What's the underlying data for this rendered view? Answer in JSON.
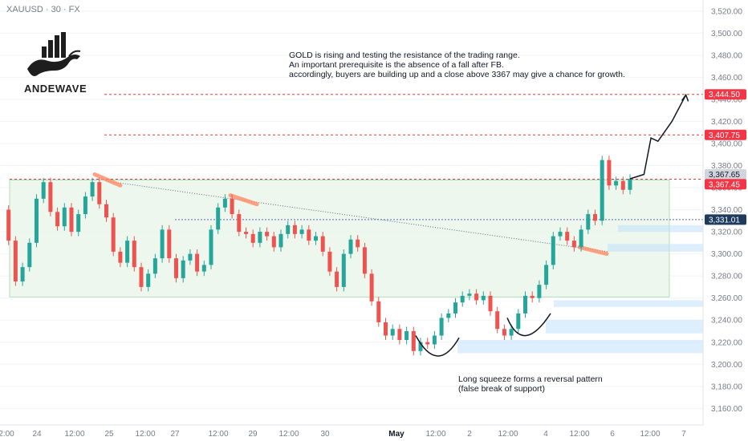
{
  "symbol_label": "XAUUSD · 30 · FX",
  "logo_text": "ANDEWAVE",
  "annotation": {
    "lines": [
      "GOLD is rising and testing the resistance of the trading range.",
      "An important prerequisite is the absence of a fall after FB.",
      "accordingly, buyers are building up and a close above 3367 may give a chance for growth."
    ]
  },
  "pattern_note": {
    "lines": [
      "Long squeeze forms a reversal pattern",
      "(false break of support)"
    ]
  },
  "colors": {
    "up": "#26a69a",
    "down": "#ef5350",
    "range_fill": "#e8f5e9",
    "level_line": "#e53935",
    "price_tag_red": "#f23645",
    "price_tag_gray": "#d1d4dc",
    "price_tag_navy": "#1e3a5f"
  },
  "chart_data": {
    "type": "candlestick",
    "title": "",
    "ylim": [
      3145,
      3530
    ],
    "y_ticks": [
      3160,
      3180,
      3200,
      3220,
      3240,
      3260,
      3280,
      3300,
      3320,
      3340,
      3360,
      3380,
      3400,
      3420,
      3440,
      3460,
      3480,
      3500,
      3520
    ],
    "y_tick_labels": [
      "3,160.00",
      "3,180.00",
      "3,200.00",
      "3,220.00",
      "3,240.00",
      "3,260.00",
      "3,280.00",
      "3,300.00",
      "3,320.00",
      "3,340.00",
      "3,360.00",
      "3,380.00",
      "3,400.00",
      "3,420.00",
      "3,440.00",
      "3,460.00",
      "3,480.00",
      "3,500.00",
      "3,520.00"
    ],
    "x_tick_labels": [
      "2:00",
      "24",
      "12:00",
      "25",
      "12:00",
      "27",
      "12:00",
      "29",
      "12:00",
      "30",
      "May",
      "12:00",
      "2",
      "12:00",
      "4",
      "12:00",
      "6",
      "12:00",
      "7"
    ],
    "trading_range": {
      "top": 3367,
      "bottom": 3261
    },
    "levels": [
      {
        "value": 3444.5,
        "label": "3,444.50",
        "style": "red"
      },
      {
        "value": 3407.75,
        "label": "3,407.75",
        "style": "red"
      },
      {
        "value": 3367.65,
        "label": "3,367.65",
        "style": "gray"
      },
      {
        "value": 3367.45,
        "label": "3,367.45",
        "style": "red"
      },
      {
        "value": 3331.01,
        "label": "3,331.01",
        "style": "navy"
      }
    ],
    "price_path": [
      [
        0,
        3340
      ],
      [
        1,
        3312
      ],
      [
        2,
        3275
      ],
      [
        3,
        3288
      ],
      [
        4,
        3310
      ],
      [
        5,
        3350
      ],
      [
        6,
        3365
      ],
      [
        7,
        3338
      ],
      [
        8,
        3325
      ],
      [
        9,
        3342
      ],
      [
        10,
        3320
      ],
      [
        11,
        3336
      ],
      [
        12,
        3352
      ],
      [
        13,
        3365
      ],
      [
        14,
        3345
      ],
      [
        15,
        3333
      ],
      [
        16,
        3302
      ],
      [
        17,
        3292
      ],
      [
        18,
        3312
      ],
      [
        19,
        3288
      ],
      [
        20,
        3270
      ],
      [
        21,
        3282
      ],
      [
        22,
        3296
      ],
      [
        23,
        3322
      ],
      [
        24,
        3296
      ],
      [
        25,
        3278
      ],
      [
        26,
        3294
      ],
      [
        27,
        3300
      ],
      [
        28,
        3284
      ],
      [
        29,
        3290
      ],
      [
        30,
        3322
      ],
      [
        31,
        3342
      ],
      [
        32,
        3350
      ],
      [
        33,
        3336
      ],
      [
        34,
        3320
      ],
      [
        35,
        3318
      ],
      [
        36,
        3310
      ],
      [
        37,
        3320
      ],
      [
        38,
        3316
      ],
      [
        39,
        3306
      ],
      [
        40,
        3318
      ],
      [
        41,
        3326
      ],
      [
        42,
        3318
      ],
      [
        43,
        3322
      ],
      [
        44,
        3312
      ],
      [
        45,
        3316
      ],
      [
        46,
        3302
      ],
      [
        47,
        3284
      ],
      [
        48,
        3270
      ],
      [
        49,
        3300
      ],
      [
        50,
        3313
      ],
      [
        51,
        3306
      ],
      [
        52,
        3282
      ],
      [
        53,
        3257
      ],
      [
        54,
        3238
      ],
      [
        55,
        3226
      ],
      [
        56,
        3232
      ],
      [
        57,
        3222
      ],
      [
        58,
        3230
      ],
      [
        59,
        3212
      ],
      [
        60,
        3220
      ],
      [
        61,
        3218
      ],
      [
        62,
        3226
      ],
      [
        63,
        3242
      ],
      [
        64,
        3246
      ],
      [
        65,
        3256
      ],
      [
        66,
        3262
      ],
      [
        67,
        3264
      ],
      [
        68,
        3258
      ],
      [
        69,
        3262
      ],
      [
        70,
        3248
      ],
      [
        71,
        3232
      ],
      [
        72,
        3226
      ],
      [
        73,
        3232
      ],
      [
        74,
        3246
      ],
      [
        75,
        3262
      ],
      [
        76,
        3260
      ],
      [
        77,
        3272
      ],
      [
        78,
        3290
      ],
      [
        79,
        3316
      ],
      [
        80,
        3320
      ],
      [
        81,
        3312
      ],
      [
        82,
        3306
      ],
      [
        83,
        3322
      ],
      [
        84,
        3336
      ],
      [
        85,
        3330
      ],
      [
        86,
        3385
      ],
      [
        87,
        3362
      ],
      [
        88,
        3366
      ],
      [
        89,
        3358
      ],
      [
        90,
        3368
      ]
    ],
    "projection_path": [
      [
        90,
        3368
      ],
      [
        92,
        3372
      ],
      [
        93,
        3405
      ],
      [
        94,
        3402
      ],
      [
        96,
        3420
      ],
      [
        98,
        3444
      ]
    ]
  }
}
